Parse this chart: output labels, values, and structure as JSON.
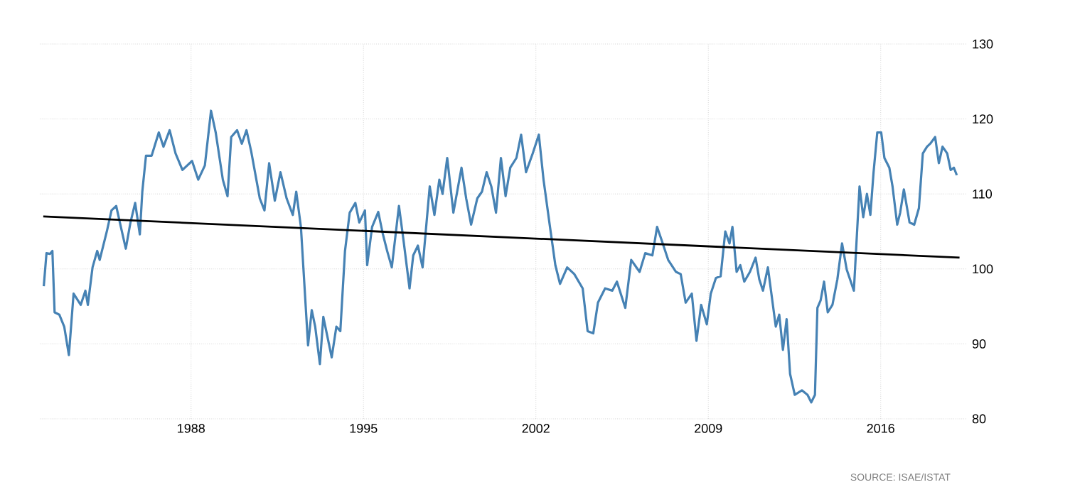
{
  "chart_data": {
    "type": "line",
    "xlim": [
      1981.86,
      2019.5
    ],
    "ylim": [
      80,
      130
    ],
    "xticks": [
      1988,
      1995,
      2002,
      2009,
      2016
    ],
    "yticks": [
      80,
      90,
      100,
      110,
      120,
      130
    ],
    "grid": true,
    "annotations": [
      "SOURCE: ISAE/ISTAT"
    ],
    "series": [
      {
        "color": "#4682b4",
        "x": [
          1982.02,
          1982.13,
          1982.27,
          1982.37,
          1982.46,
          1982.65,
          1982.85,
          1983.04,
          1983.23,
          1983.52,
          1983.71,
          1983.81,
          1984.0,
          1984.19,
          1984.29,
          1984.58,
          1984.77,
          1984.96,
          1985.15,
          1985.35,
          1985.54,
          1985.73,
          1985.92,
          1986.02,
          1986.17,
          1986.4,
          1986.69,
          1986.88,
          1987.13,
          1987.37,
          1987.65,
          1988.04,
          1988.29,
          1988.56,
          1988.81,
          1989.0,
          1989.29,
          1989.48,
          1989.63,
          1989.87,
          1990.06,
          1990.25,
          1990.44,
          1990.79,
          1990.98,
          1991.17,
          1991.4,
          1991.63,
          1991.88,
          1992.13,
          1992.27,
          1992.46,
          1992.75,
          1992.9,
          1993.04,
          1993.23,
          1993.37,
          1993.71,
          1993.9,
          1994.06,
          1994.25,
          1994.44,
          1994.67,
          1994.83,
          1995.06,
          1995.15,
          1995.35,
          1995.6,
          1995.79,
          1995.96,
          1996.15,
          1996.44,
          1996.63,
          1996.87,
          1997.02,
          1997.21,
          1997.4,
          1997.69,
          1997.88,
          1998.08,
          1998.21,
          1998.4,
          1998.65,
          1998.98,
          1999.17,
          1999.37,
          1999.62,
          1999.81,
          2000.0,
          2000.19,
          2000.38,
          2000.58,
          2000.77,
          2000.96,
          2001.21,
          2001.4,
          2001.6,
          2001.87,
          2002.12,
          2002.31,
          2002.56,
          2002.79,
          2002.98,
          2003.27,
          2003.56,
          2003.9,
          2004.1,
          2004.33,
          2004.52,
          2004.81,
          2005.1,
          2005.29,
          2005.63,
          2005.87,
          2006.21,
          2006.44,
          2006.73,
          2006.92,
          2007.12,
          2007.37,
          2007.69,
          2007.88,
          2008.08,
          2008.33,
          2008.52,
          2008.71,
          2008.94,
          2009.1,
          2009.31,
          2009.5,
          2009.69,
          2009.86,
          2009.98,
          2010.15,
          2010.3,
          2010.46,
          2010.69,
          2010.92,
          2011.07,
          2011.22,
          2011.42,
          2011.74,
          2011.88,
          2012.03,
          2012.18,
          2012.32,
          2012.51,
          2012.8,
          2013.03,
          2013.18,
          2013.33,
          2013.43,
          2013.56,
          2013.7,
          2013.85,
          2014.04,
          2014.24,
          2014.43,
          2014.62,
          2014.91,
          2015.14,
          2015.29,
          2015.44,
          2015.58,
          2015.71,
          2015.86,
          2016.02,
          2016.15,
          2016.35,
          2016.48,
          2016.67,
          2016.79,
          2016.94,
          2017.17,
          2017.36,
          2017.55,
          2017.71,
          2017.88,
          2018.01,
          2018.21,
          2018.36,
          2018.51,
          2018.7,
          2018.84,
          2018.97,
          2019.09
        ],
        "values": [
          97.7,
          102.1,
          102,
          102.4,
          94.2,
          93.9,
          92.3,
          88.5,
          96.7,
          95.2,
          97.1,
          95.2,
          100.2,
          102.4,
          101.2,
          105,
          107.8,
          108.4,
          105.6,
          102.7,
          106.2,
          108.8,
          104.6,
          110.3,
          115.1,
          115.1,
          118.2,
          116.3,
          118.5,
          115.4,
          113.2,
          114.4,
          111.9,
          113.8,
          121.1,
          118.2,
          111.9,
          109.7,
          117.6,
          118.5,
          116.7,
          118.5,
          115.7,
          109.4,
          107.8,
          114.1,
          109.1,
          112.9,
          109.4,
          107.2,
          110.3,
          105.6,
          89.8,
          94.5,
          92.3,
          87.3,
          93.6,
          88.2,
          92.3,
          91.7,
          102.4,
          107.5,
          108.8,
          106.2,
          107.8,
          100.5,
          105.6,
          107.6,
          104.6,
          102.4,
          100.2,
          108.4,
          103.7,
          97.4,
          101.8,
          103.1,
          100.2,
          111,
          107.2,
          111.9,
          110,
          114.8,
          107.5,
          113.5,
          109.4,
          105.9,
          109.4,
          110.3,
          112.9,
          111,
          107.5,
          114.8,
          109.7,
          113.5,
          114.8,
          117.9,
          112.9,
          115.4,
          117.9,
          111.9,
          105.9,
          100.5,
          98,
          100.2,
          99.3,
          97.4,
          91.7,
          91.4,
          95.5,
          97.4,
          97.1,
          98.3,
          94.8,
          101.2,
          99.6,
          102.1,
          101.8,
          105.6,
          103.7,
          101.2,
          99.6,
          99.3,
          95.5,
          96.7,
          90.4,
          95.2,
          92.6,
          96.7,
          98.8,
          99,
          105,
          103.4,
          105.6,
          99.6,
          100.5,
          98.3,
          99.6,
          101.5,
          98.6,
          97.1,
          100.2,
          92.3,
          93.9,
          89.2,
          93.3,
          86,
          83.2,
          83.8,
          83.2,
          82.2,
          83.2,
          94.8,
          95.8,
          98.3,
          94.2,
          95.2,
          98.6,
          103.4,
          99.9,
          97.1,
          111,
          106.9,
          110,
          107.2,
          112.9,
          118.2,
          118.2,
          114.8,
          113.5,
          111,
          105.9,
          107.5,
          110.6,
          106.2,
          105.9,
          108.1,
          115.4,
          116.3,
          116.7,
          117.6,
          114.1,
          116.3,
          115.4,
          113.2,
          113.5,
          112.5
        ]
      },
      {
        "type": "line",
        "color": "#000000",
        "x": [
          1982.0,
          2019.2
        ],
        "values": [
          107,
          101.5
        ]
      }
    ]
  }
}
